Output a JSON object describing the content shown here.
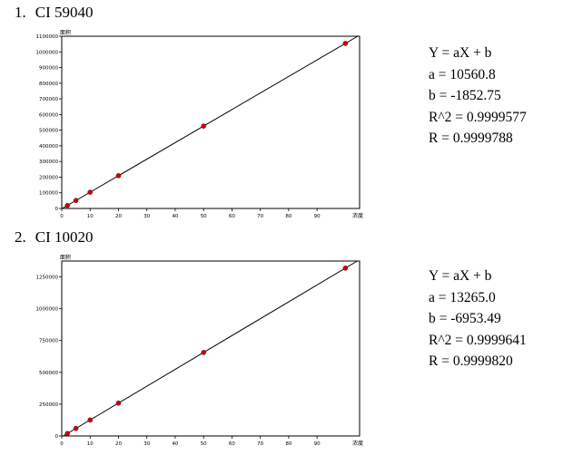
{
  "charts": [
    {
      "index": "1.",
      "title": "CI 59040",
      "equation": {
        "form": "Y = aX + b",
        "a": "a = 10560.8",
        "b": "b = -1852.75",
        "r2": "R^2 = 0.9999577",
        "r": "R = 0.9999788"
      }
    },
    {
      "index": "2.",
      "title": "CI 10020",
      "equation": {
        "form": "Y = aX + b",
        "a": "a = 13265.0",
        "b": "b = -6953.49",
        "r2": "R^2 = 0.9999641",
        "r": "R = 0.9999820"
      }
    }
  ],
  "chart_data": [
    {
      "type": "scatter",
      "title": "CI 59040",
      "xlabel": "浓度",
      "ylabel": "面积",
      "xlim": [
        0,
        105
      ],
      "ylim": [
        0,
        1100000
      ],
      "xticks": [
        0,
        10,
        20,
        30,
        40,
        50,
        60,
        70,
        80,
        90
      ],
      "yticks": [
        0,
        100000,
        200000,
        300000,
        400000,
        500000,
        600000,
        700000,
        800000,
        900000,
        1000000,
        1100000
      ],
      "fit": {
        "a": 10560.8,
        "b": -1852.75
      },
      "points": [
        {
          "x": 2,
          "y": 19300,
          "color": "#cc0000"
        },
        {
          "x": 5,
          "y": 51000,
          "color": "#cc0000"
        },
        {
          "x": 10,
          "y": 103800,
          "color": "#cc0000"
        },
        {
          "x": 20,
          "y": 209400,
          "color": "#cc0000"
        },
        {
          "x": 50,
          "y": 526200,
          "color": "#cc0000"
        },
        {
          "x": 100,
          "y": 1054200,
          "color": "#cc0000"
        }
      ],
      "grid": false
    },
    {
      "type": "scatter",
      "title": "CI 10020",
      "xlabel": "浓度",
      "ylabel": "面积",
      "xlim": [
        0,
        105
      ],
      "ylim": [
        0,
        1375000
      ],
      "xticks": [
        0,
        10,
        20,
        30,
        40,
        50,
        60,
        70,
        80,
        90
      ],
      "yticks": [
        0,
        250000,
        500000,
        750000,
        1000000,
        1250000
      ],
      "fit": {
        "a": 13265.0,
        "b": -6953.49
      },
      "points": [
        {
          "x": 2,
          "y": 19600,
          "color": "#cc0000"
        },
        {
          "x": 5,
          "y": 59400,
          "color": "#cc0000"
        },
        {
          "x": 10,
          "y": 125700,
          "color": "#cc0000"
        },
        {
          "x": 20,
          "y": 258300,
          "color": "#cc0000"
        },
        {
          "x": 50,
          "y": 656300,
          "color": "#cc0000"
        },
        {
          "x": 100,
          "y": 1319500,
          "color": "#cc0000"
        }
      ],
      "grid": false
    }
  ]
}
